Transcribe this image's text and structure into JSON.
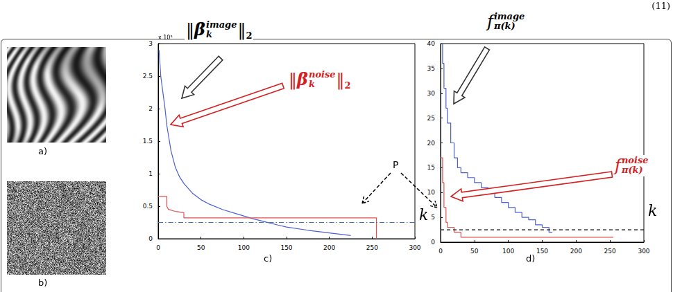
{
  "header": {
    "equation_number": "(11)"
  },
  "images": [
    {
      "label": "a)"
    },
    {
      "label": "b)"
    }
  ],
  "pointer_label": "P",
  "chart_data": [
    {
      "type": "line",
      "panel": "c)",
      "x_label": "k",
      "y_multiplier": "x 10⁵",
      "xlim": [
        0,
        300
      ],
      "xticks": [
        0,
        50,
        100,
        150,
        200,
        250,
        300
      ],
      "ylim": [
        0,
        3
      ],
      "yticks": [
        0,
        0.5,
        1,
        1.5,
        2,
        2.5,
        3
      ],
      "grid": false,
      "annotations": [
        {
          "open": "‖",
          "base": "β",
          "sup": "image",
          "sub": "k",
          "close": "‖",
          "close_sub": "2",
          "color": "#000000"
        },
        {
          "open": "‖",
          "base": "β",
          "sup": "noise",
          "sub": "k",
          "close": "‖",
          "close_sub": "2",
          "color": "#d42020"
        }
      ],
      "series": [
        {
          "color": "#4a5fd0",
          "line_style": "solid",
          "x": [
            1,
            3,
            5,
            8,
            10,
            15,
            20,
            25,
            30,
            40,
            50,
            60,
            75,
            90,
            100,
            110,
            125,
            140,
            150,
            175,
            200,
            225
          ],
          "values": [
            2.9,
            2.5,
            2.3,
            2.0,
            1.75,
            1.35,
            1.1,
            0.95,
            0.85,
            0.7,
            0.6,
            0.53,
            0.45,
            0.39,
            0.35,
            0.31,
            0.26,
            0.21,
            0.18,
            0.13,
            0.09,
            0.05
          ]
        },
        {
          "color": "#e05050",
          "line_style": "solid",
          "x": [
            0,
            10,
            10,
            12,
            20,
            30,
            30,
            255,
            255
          ],
          "values": [
            0.65,
            0.65,
            0.5,
            0.45,
            0.42,
            0.4,
            0.32,
            0.32,
            0
          ]
        },
        {
          "color": "#3a6fd8",
          "line_style": "dashdot",
          "x": [
            0,
            300
          ],
          "values": [
            0.25,
            0.25
          ]
        }
      ]
    },
    {
      "type": "line",
      "panel": "d)",
      "x_label": "k",
      "xlim": [
        0,
        300
      ],
      "xticks": [
        0,
        50,
        100,
        150,
        200,
        250,
        300
      ],
      "ylim": [
        0,
        40
      ],
      "yticks": [
        0,
        5,
        10,
        15,
        20,
        25,
        30,
        35,
        40
      ],
      "grid": false,
      "annotations": [
        {
          "base": "f",
          "sup": "image",
          "sub": "π(k)",
          "color": "#000000"
        },
        {
          "base": "f",
          "sup": "noise",
          "sub": "π(k)",
          "color": "#d42020"
        }
      ],
      "series": [
        {
          "color": "#4a5fd0",
          "line_style": "step",
          "x": [
            1,
            3,
            5,
            8,
            10,
            15,
            20,
            25,
            30,
            40,
            50,
            60,
            70,
            80,
            90,
            100,
            110,
            120,
            130,
            140,
            150,
            160,
            165
          ],
          "values": [
            40,
            36,
            31,
            27,
            24,
            20,
            17,
            15,
            14,
            13,
            12,
            11,
            10,
            9,
            8,
            7,
            6,
            5,
            4.5,
            3.5,
            3,
            2,
            2
          ]
        },
        {
          "color": "#e05050",
          "line_style": "step",
          "x": [
            0,
            3,
            5,
            8,
            10,
            20,
            25,
            30,
            255
          ],
          "values": [
            17,
            12,
            7,
            4,
            3,
            2,
            2,
            1,
            1
          ]
        },
        {
          "color": "#000000",
          "line_style": "dashed",
          "x": [
            0,
            300
          ],
          "values": [
            2.5,
            2.5
          ]
        }
      ]
    }
  ]
}
